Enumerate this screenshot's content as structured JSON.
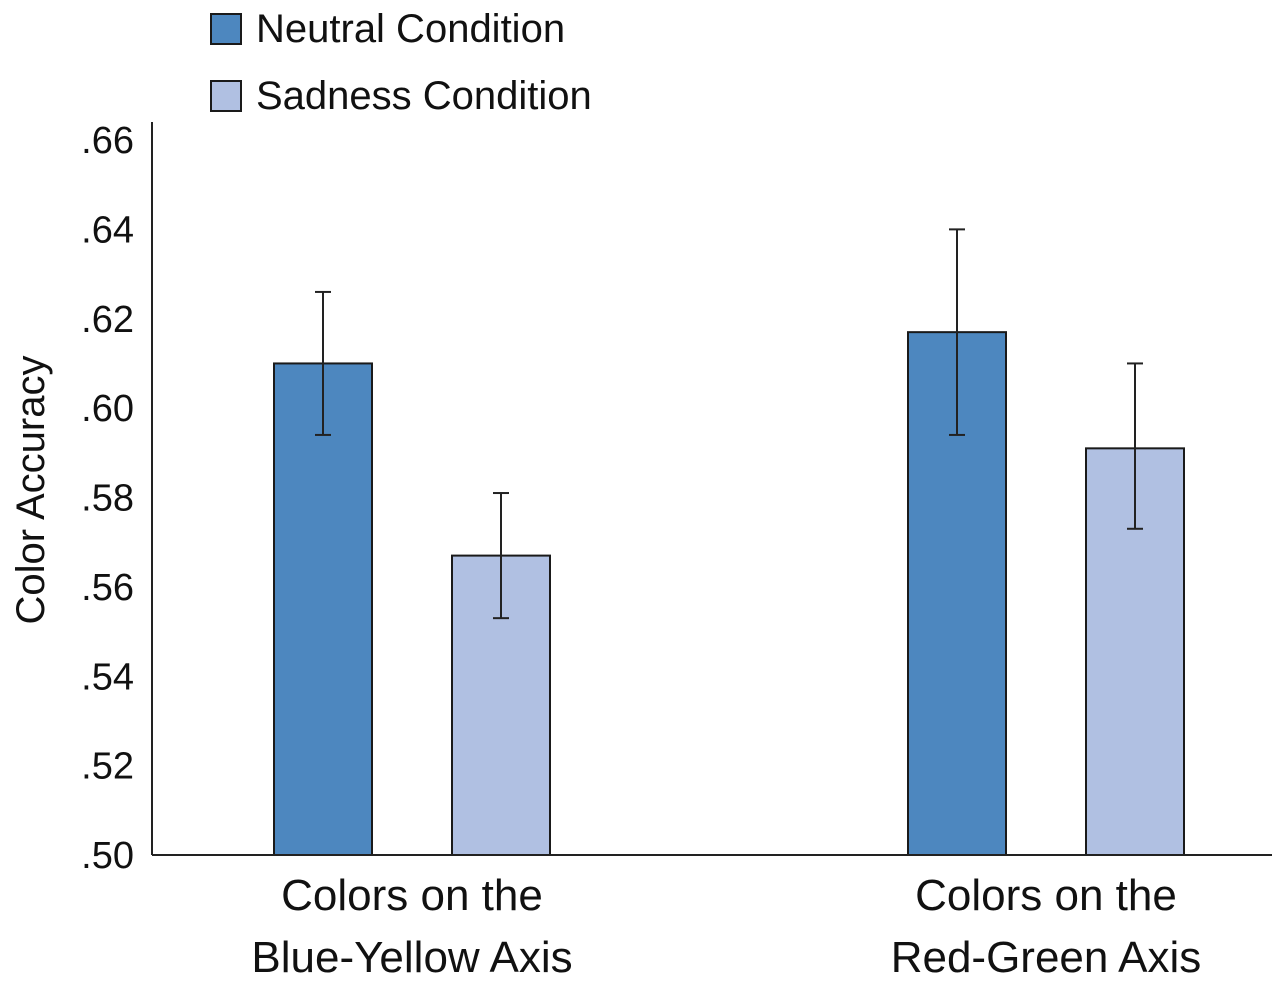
{
  "chart_data": {
    "type": "bar",
    "title": "",
    "xlabel": "",
    "ylabel": "Color Accuracy",
    "ylim": [
      0.5,
      0.66
    ],
    "yticks": [
      0.5,
      0.52,
      0.54,
      0.56,
      0.58,
      0.6,
      0.62,
      0.64,
      0.66
    ],
    "ytick_labels": [
      ".50",
      ".52",
      ".54",
      ".56",
      ".58",
      ".60",
      ".62",
      ".64",
      ".66"
    ],
    "grid": false,
    "legend_position": "top-left",
    "categories": [
      [
        "Colors on the",
        "Blue-Yellow Axis"
      ],
      [
        "Colors on the",
        "Red-Green Axis"
      ]
    ],
    "series": [
      {
        "name": "Neutral Condition",
        "color": "#4d87bf",
        "values": [
          0.61,
          0.617
        ],
        "error_low": [
          0.594,
          0.594
        ],
        "error_high": [
          0.626,
          0.64
        ]
      },
      {
        "name": "Sadness Condition",
        "color": "#b0c0e2",
        "values": [
          0.567,
          0.591
        ],
        "error_low": [
          0.553,
          0.573
        ],
        "error_high": [
          0.581,
          0.61
        ]
      }
    ]
  }
}
